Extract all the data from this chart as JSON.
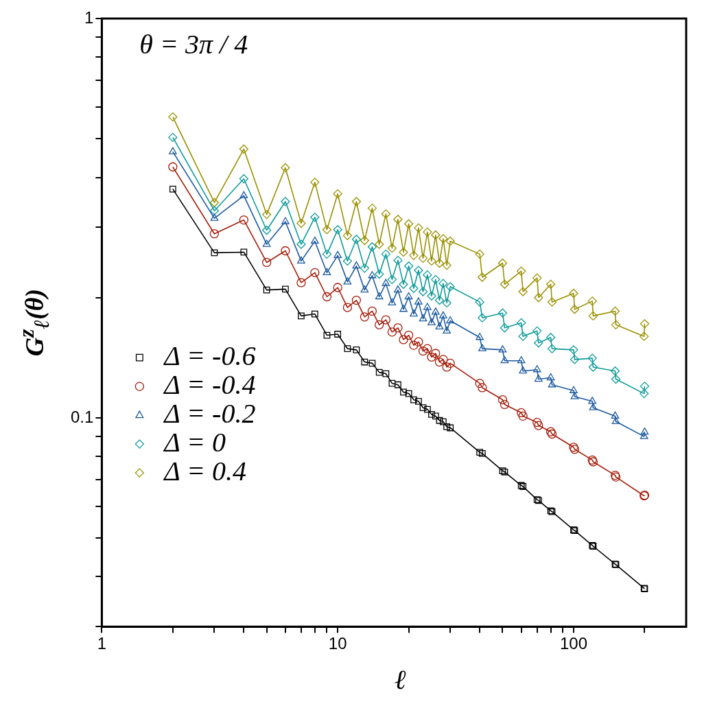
{
  "chart_data": {
    "type": "line",
    "xlabel": "ℓ",
    "ylabel": "G$^{z}$$_{ℓ}$(θ)",
    "annotations": [
      "θ = 3π / 4"
    ],
    "log": "xy",
    "grid": false,
    "legend": "left",
    "line_style": "solid",
    "xlim": [
      1,
      300
    ],
    "ylim": [
      0.03,
      1
    ],
    "xticks": [
      1,
      {
        "value": 2,
        "label": null
      },
      {
        "value": 3,
        "label": null
      },
      {
        "value": 4,
        "label": null
      },
      {
        "value": 5,
        "label": null
      },
      {
        "value": 6,
        "label": null
      },
      {
        "value": 7,
        "label": null
      },
      {
        "value": 8,
        "label": null
      },
      {
        "value": 9,
        "label": null
      },
      10,
      {
        "value": 20,
        "label": null
      },
      {
        "value": 30,
        "label": null
      },
      {
        "value": 40,
        "label": null
      },
      {
        "value": 50,
        "label": null
      },
      {
        "value": 60,
        "label": null
      },
      {
        "value": 70,
        "label": null
      },
      {
        "value": 80,
        "label": null
      },
      {
        "value": 90,
        "label": null
      },
      100,
      {
        "value": 200,
        "label": null
      }
    ],
    "yticks": [
      {
        "value": 0.03,
        "label": null
      },
      {
        "value": 0.04,
        "label": null
      },
      {
        "value": 0.05,
        "label": null
      },
      {
        "value": 0.06,
        "label": null
      },
      {
        "value": 0.07,
        "label": null
      },
      {
        "value": 0.08,
        "label": null
      },
      {
        "value": 0.09,
        "label": null
      },
      0.1,
      {
        "value": 0.2,
        "label": null
      },
      {
        "value": 0.3,
        "label": null
      },
      {
        "value": 0.4,
        "label": null
      },
      {
        "value": 0.5,
        "label": null
      },
      {
        "value": 0.6,
        "label": null
      },
      {
        "value": 0.7,
        "label": null
      },
      {
        "value": 0.8,
        "label": null
      },
      {
        "value": 0.9,
        "label": null
      },
      1
    ],
    "x": [
      2,
      3,
      4,
      5,
      6,
      7,
      8,
      9,
      10,
      11,
      12,
      13,
      14,
      15,
      16,
      17,
      18,
      19,
      20,
      21,
      22,
      23,
      24,
      25,
      26,
      27,
      28,
      29,
      30,
      40,
      41,
      50,
      51,
      60,
      61,
      70,
      71,
      80,
      81,
      100,
      101,
      120,
      121,
      150,
      151,
      199,
      200
    ],
    "series": [
      {
        "name": "Δ = -0.6",
        "color": "#000000",
        "marker": "square",
        "values": [
          0.374,
          0.259,
          0.26,
          0.209,
          0.21,
          0.18,
          0.182,
          0.161,
          0.162,
          0.149,
          0.148,
          0.138,
          0.137,
          0.13,
          0.129,
          0.122,
          0.121,
          0.116,
          0.115,
          0.111,
          0.11,
          0.106,
          0.105,
          0.102,
          0.101,
          0.0985,
          0.0978,
          0.095,
          0.0944,
          0.082,
          0.0814,
          0.0737,
          0.0732,
          0.0677,
          0.0673,
          0.0624,
          0.0621,
          0.0585,
          0.0582,
          0.0524,
          0.0522,
          0.0479,
          0.0477,
          0.043,
          0.0429,
          0.0374,
          0.0373
        ]
      },
      {
        "name": "Δ = -0.4",
        "color": "#a51d0a",
        "marker": "circle",
        "values": [
          0.425,
          0.289,
          0.313,
          0.245,
          0.262,
          0.218,
          0.231,
          0.201,
          0.212,
          0.189,
          0.197,
          0.179,
          0.185,
          0.171,
          0.176,
          0.164,
          0.168,
          0.157,
          0.161,
          0.152,
          0.155,
          0.147,
          0.149,
          0.142,
          0.145,
          0.138,
          0.14,
          0.134,
          0.137,
          0.122,
          0.119,
          0.111,
          0.108,
          0.103,
          0.101,
          0.0974,
          0.0957,
          0.0923,
          0.0911,
          0.0844,
          0.0834,
          0.0784,
          0.0776,
          0.0718,
          0.0711,
          0.0638,
          0.064
        ]
      },
      {
        "name": "Δ = -0.2",
        "color": "#1c5aa0",
        "marker": "triangle",
        "values": [
          0.464,
          0.316,
          0.36,
          0.272,
          0.31,
          0.247,
          0.277,
          0.231,
          0.255,
          0.219,
          0.24,
          0.209,
          0.227,
          0.201,
          0.217,
          0.194,
          0.209,
          0.187,
          0.201,
          0.182,
          0.195,
          0.177,
          0.189,
          0.173,
          0.184,
          0.169,
          0.18,
          0.165,
          0.175,
          0.159,
          0.149,
          0.148,
          0.139,
          0.139,
          0.131,
          0.132,
          0.125,
          0.126,
          0.121,
          0.117,
          0.113,
          0.11,
          0.106,
          0.101,
          0.0979,
          0.0898,
          0.0921
        ]
      },
      {
        "name": "Δ = 0",
        "color": "#0f9a9a",
        "marker": "diamond",
        "values": [
          0.504,
          0.33,
          0.397,
          0.295,
          0.348,
          0.272,
          0.318,
          0.257,
          0.296,
          0.247,
          0.28,
          0.237,
          0.268,
          0.229,
          0.257,
          0.222,
          0.248,
          0.216,
          0.24,
          0.211,
          0.234,
          0.207,
          0.228,
          0.202,
          0.222,
          0.197,
          0.217,
          0.194,
          0.213,
          0.195,
          0.178,
          0.183,
          0.168,
          0.173,
          0.16,
          0.165,
          0.154,
          0.159,
          0.149,
          0.148,
          0.14,
          0.141,
          0.134,
          0.131,
          0.125,
          0.115,
          0.12
        ]
      },
      {
        "name": "Δ = 0.4",
        "color": "#9a9000",
        "marker": "diamond",
        "values": [
          0.567,
          0.346,
          0.471,
          0.323,
          0.423,
          0.307,
          0.389,
          0.296,
          0.364,
          0.286,
          0.348,
          0.278,
          0.335,
          0.272,
          0.324,
          0.266,
          0.314,
          0.26,
          0.306,
          0.255,
          0.299,
          0.251,
          0.292,
          0.247,
          0.287,
          0.244,
          0.281,
          0.241,
          0.277,
          0.257,
          0.225,
          0.244,
          0.216,
          0.233,
          0.207,
          0.224,
          0.2,
          0.216,
          0.195,
          0.205,
          0.187,
          0.196,
          0.18,
          0.185,
          0.171,
          0.16,
          0.172
        ]
      }
    ]
  }
}
